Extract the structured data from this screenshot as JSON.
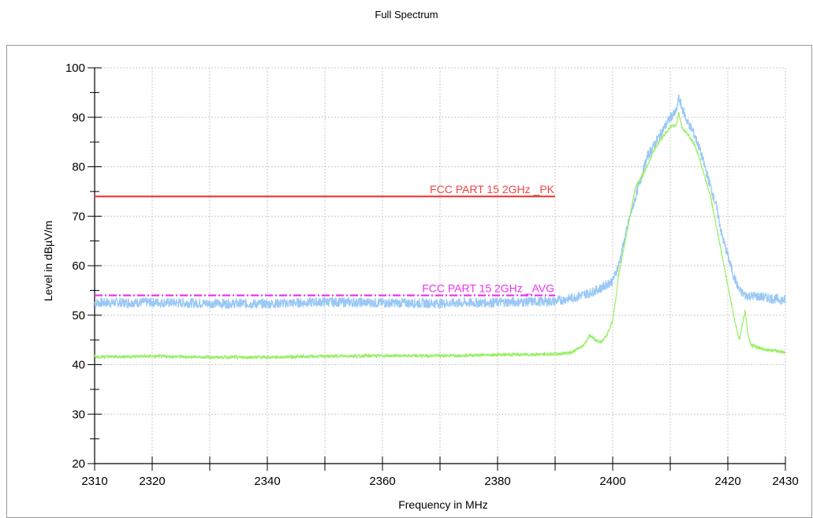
{
  "chart_data": {
    "type": "line",
    "title": "Full Spectrum",
    "xlabel": "Frequency in MHz",
    "ylabel": "Level in dBµV/m",
    "xlim": [
      2310,
      2430
    ],
    "ylim": [
      20,
      100
    ],
    "grid": true,
    "x_ticks": [
      2310,
      2320,
      2340,
      2360,
      2380,
      2400,
      2420,
      2430
    ],
    "x_minor_ticks": [
      2330,
      2350,
      2370,
      2390,
      2410
    ],
    "y_ticks": [
      20,
      30,
      40,
      50,
      60,
      70,
      80,
      90,
      100
    ],
    "limit_lines": [
      {
        "name": "FCC PART 15 2GHz _PK",
        "y": 74,
        "x_start": 2310,
        "x_end": 2390,
        "color": "#ee4444",
        "style": "solid"
      },
      {
        "name": "FCC PART 15 2GHz _AVG",
        "y": 54,
        "x_start": 2310,
        "x_end": 2390,
        "color": "#ee33ee",
        "style": "dashdot"
      }
    ],
    "series": [
      {
        "color": "#99c8f5",
        "points": [
          [
            2310,
            52.5
          ],
          [
            2320,
            52.6
          ],
          [
            2330,
            52.4
          ],
          [
            2340,
            52.3
          ],
          [
            2350,
            52.7
          ],
          [
            2360,
            52.5
          ],
          [
            2370,
            52.4
          ],
          [
            2380,
            52.6
          ],
          [
            2390,
            52.8
          ],
          [
            2393,
            53.5
          ],
          [
            2396,
            54.5
          ],
          [
            2398,
            55.5
          ],
          [
            2400,
            57
          ],
          [
            2401,
            60
          ],
          [
            2402,
            65
          ],
          [
            2403,
            70
          ],
          [
            2404,
            74
          ],
          [
            2405,
            78
          ],
          [
            2406,
            82
          ],
          [
            2407,
            84
          ],
          [
            2408,
            86
          ],
          [
            2409,
            88
          ],
          [
            2410,
            90
          ],
          [
            2411,
            91
          ],
          [
            2411.5,
            94
          ],
          [
            2412,
            92
          ],
          [
            2413,
            89
          ],
          [
            2414,
            87
          ],
          [
            2415,
            84
          ],
          [
            2416,
            80
          ],
          [
            2417,
            76
          ],
          [
            2418,
            72
          ],
          [
            2419,
            66
          ],
          [
            2420,
            62
          ],
          [
            2421,
            58
          ],
          [
            2422,
            55
          ],
          [
            2423,
            54
          ],
          [
            2425,
            53.8
          ],
          [
            2427,
            53.5
          ],
          [
            2430,
            53
          ]
        ],
        "noise": 1.0
      },
      {
        "color": "#99ee66",
        "points": [
          [
            2310,
            41.6
          ],
          [
            2320,
            41.7
          ],
          [
            2330,
            41.5
          ],
          [
            2340,
            41.5
          ],
          [
            2350,
            41.7
          ],
          [
            2360,
            41.8
          ],
          [
            2370,
            41.8
          ],
          [
            2380,
            42
          ],
          [
            2390,
            42.1
          ],
          [
            2393,
            42.5
          ],
          [
            2395,
            44
          ],
          [
            2396,
            46
          ],
          [
            2397,
            45
          ],
          [
            2398,
            44.5
          ],
          [
            2399,
            46
          ],
          [
            2400,
            49
          ],
          [
            2400.5,
            53
          ],
          [
            2401,
            58
          ],
          [
            2402,
            64
          ],
          [
            2403,
            70
          ],
          [
            2404,
            76
          ],
          [
            2405,
            78
          ],
          [
            2406,
            80
          ],
          [
            2407,
            83
          ],
          [
            2408,
            85
          ],
          [
            2409,
            86.5
          ],
          [
            2410,
            88
          ],
          [
            2411,
            88.5
          ],
          [
            2411.5,
            91
          ],
          [
            2412,
            88
          ],
          [
            2413,
            86.5
          ],
          [
            2414,
            85
          ],
          [
            2415,
            82
          ],
          [
            2416,
            78
          ],
          [
            2417,
            74
          ],
          [
            2418,
            68
          ],
          [
            2419,
            62
          ],
          [
            2420,
            56
          ],
          [
            2421,
            50
          ],
          [
            2422,
            45
          ],
          [
            2422.5,
            48
          ],
          [
            2423,
            51
          ],
          [
            2423.5,
            46
          ],
          [
            2424,
            44
          ],
          [
            2425,
            43.5
          ],
          [
            2427,
            43
          ],
          [
            2430,
            42.5
          ]
        ],
        "noise": 0.3
      }
    ]
  }
}
